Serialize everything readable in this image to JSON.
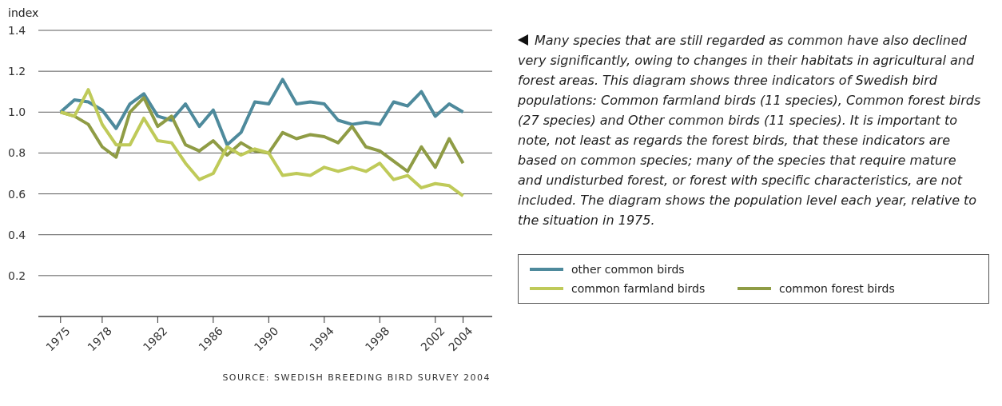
{
  "chart_data": {
    "type": "line",
    "ylabel": "index",
    "x": [
      1975,
      1976,
      1977,
      1978,
      1979,
      1980,
      1981,
      1982,
      1983,
      1984,
      1985,
      1986,
      1987,
      1988,
      1989,
      1990,
      1991,
      1992,
      1993,
      1994,
      1995,
      1996,
      1997,
      1998,
      1999,
      2000,
      2001,
      2002,
      2003,
      2004
    ],
    "series": [
      {
        "name": "other common birds",
        "color": "#4e8a9c",
        "values": [
          1.0,
          1.06,
          1.05,
          1.01,
          0.92,
          1.04,
          1.09,
          0.98,
          0.96,
          1.04,
          0.93,
          1.01,
          0.84,
          0.9,
          1.05,
          1.04,
          1.16,
          1.04,
          1.05,
          1.04,
          0.96,
          0.94,
          0.95,
          0.94,
          1.05,
          1.03,
          1.1,
          0.98,
          1.04,
          1.0
        ]
      },
      {
        "name": "common forest birds",
        "color": "#8f9c45",
        "values": [
          1.0,
          0.98,
          0.94,
          0.83,
          0.78,
          1.0,
          1.07,
          0.93,
          0.98,
          0.84,
          0.81,
          0.86,
          0.79,
          0.85,
          0.81,
          0.8,
          0.9,
          0.87,
          0.89,
          0.88,
          0.85,
          0.93,
          0.83,
          0.81,
          0.76,
          0.71,
          0.83,
          0.73,
          0.87,
          0.75
        ]
      },
      {
        "name": "common farmland birds",
        "color": "#bfca59",
        "values": [
          1.0,
          0.98,
          1.11,
          0.94,
          0.84,
          0.84,
          0.97,
          0.86,
          0.85,
          0.75,
          0.67,
          0.7,
          0.83,
          0.79,
          0.82,
          0.8,
          0.69,
          0.7,
          0.69,
          0.73,
          0.71,
          0.73,
          0.71,
          0.75,
          0.67,
          0.69,
          0.63,
          0.65,
          0.64,
          0.59
        ]
      }
    ],
    "xlim": [
      1973.4,
      2006.1
    ],
    "xticks": [
      1975,
      1978,
      1982,
      1986,
      1990,
      1994,
      1998,
      2002,
      2004
    ],
    "ylim": [
      0,
      1.4
    ],
    "yticks": [
      {
        "value": 0.2,
        "label": "0.2"
      },
      {
        "value": 0.4,
        "label": "0.4"
      },
      {
        "value": 0.6,
        "label": "0.6"
      },
      {
        "value": 0.8,
        "label": "0.8"
      },
      {
        "value": 1.0,
        "label": "1.0"
      },
      {
        "value": 1.2,
        "label": "1.2"
      },
      {
        "value": 1.4,
        "label": "1.4"
      }
    ],
    "grid": "y",
    "legend": "right",
    "marker": "none",
    "line_style": "solid",
    "annotations": [
      "Many species that are still regarded as common have also declined very significantly, owing to changes in their habitats in agricultural and forest areas. This diagram shows three indicators of Swedish bird populations: Common farmland birds (11 species), Common forest birds (27 species) and Other common birds (11 species). It is important to note, not least as regards the forest birds, that these indicators are based on common species; many of the species that require mature and undisturbed forest, or forest with specific characteristics, are not included. The diagram shows the population level each year, relative to the situation in 1975.",
      "SOURCE: SWEDISH BREEDING BIRD SURVEY 2004"
    ]
  }
}
